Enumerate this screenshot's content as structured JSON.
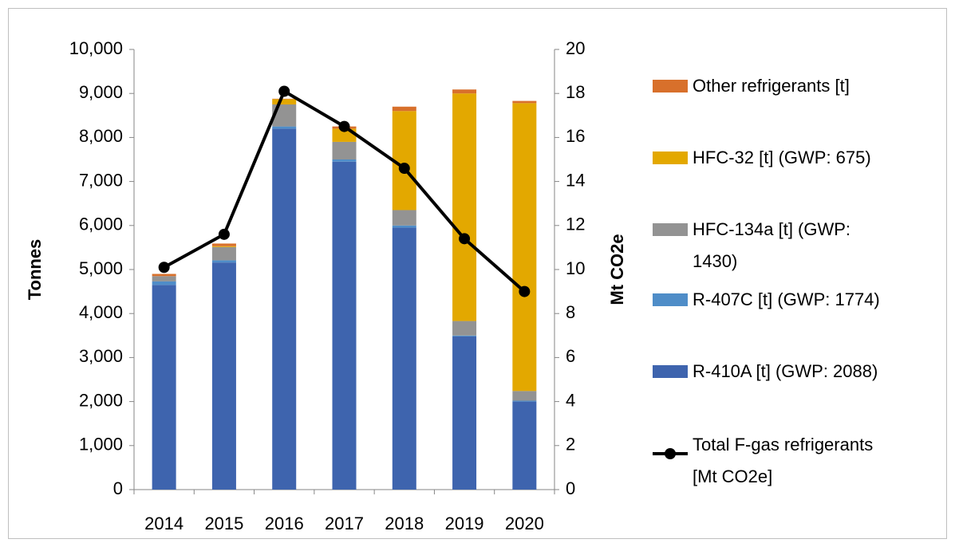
{
  "chart_data": {
    "type": "bar",
    "stacked": true,
    "categories": [
      "2014",
      "2015",
      "2016",
      "2017",
      "2018",
      "2019",
      "2020"
    ],
    "y_label": "Tonnes",
    "y2_label": "Mt CO2e",
    "ylim": [
      0,
      10000
    ],
    "yticks": [
      0,
      {
        "value": 1000,
        "label": "1,000"
      },
      {
        "value": 2000,
        "label": "2,000"
      },
      {
        "value": 3000,
        "label": "3,000"
      },
      {
        "value": 4000,
        "label": "4,000"
      },
      {
        "value": 5000,
        "label": "5,000"
      },
      {
        "value": 6000,
        "label": "6,000"
      },
      {
        "value": 7000,
        "label": "7,000"
      },
      {
        "value": 8000,
        "label": "8,000"
      },
      {
        "value": 9000,
        "label": "9,000"
      },
      {
        "value": 10000,
        "label": "10,000"
      }
    ],
    "y2lim": [
      0,
      20
    ],
    "y2ticks": [
      0,
      2,
      4,
      6,
      8,
      10,
      12,
      14,
      16,
      18,
      20
    ],
    "grid": false,
    "legend": "right",
    "series": [
      {
        "name": "R-410A [t] (GWP: 2088)",
        "color": "#3e64ae",
        "values": [
          4650,
          5160,
          8200,
          7450,
          5950,
          3480,
          2000
        ]
      },
      {
        "name": "R-407C [t] (GWP: 1774)",
        "color": "#4f8dc8",
        "values": [
          80,
          50,
          50,
          50,
          50,
          20,
          20
        ]
      },
      {
        "name": "HFC-134a [t] (GWP: 1430)",
        "color": "#939393",
        "values": [
          120,
          300,
          500,
          400,
          350,
          330,
          220
        ]
      },
      {
        "name": "HFC-32 [t] (GWP: 675)",
        "color": "#e3a800",
        "values": [
          0,
          20,
          120,
          300,
          2250,
          5170,
          6540
        ]
      },
      {
        "name": "Other refrigerants [t]",
        "color": "#d8702b",
        "values": [
          50,
          60,
          10,
          50,
          100,
          90,
          50
        ]
      },
      {
        "name": "Total F-gas refrigerants [Mt CO2e]",
        "color": "#000000",
        "type": "line",
        "axis": "y2",
        "values": [
          10.1,
          11.6,
          18.1,
          16.5,
          14.6,
          11.4,
          9.0
        ]
      }
    ]
  }
}
